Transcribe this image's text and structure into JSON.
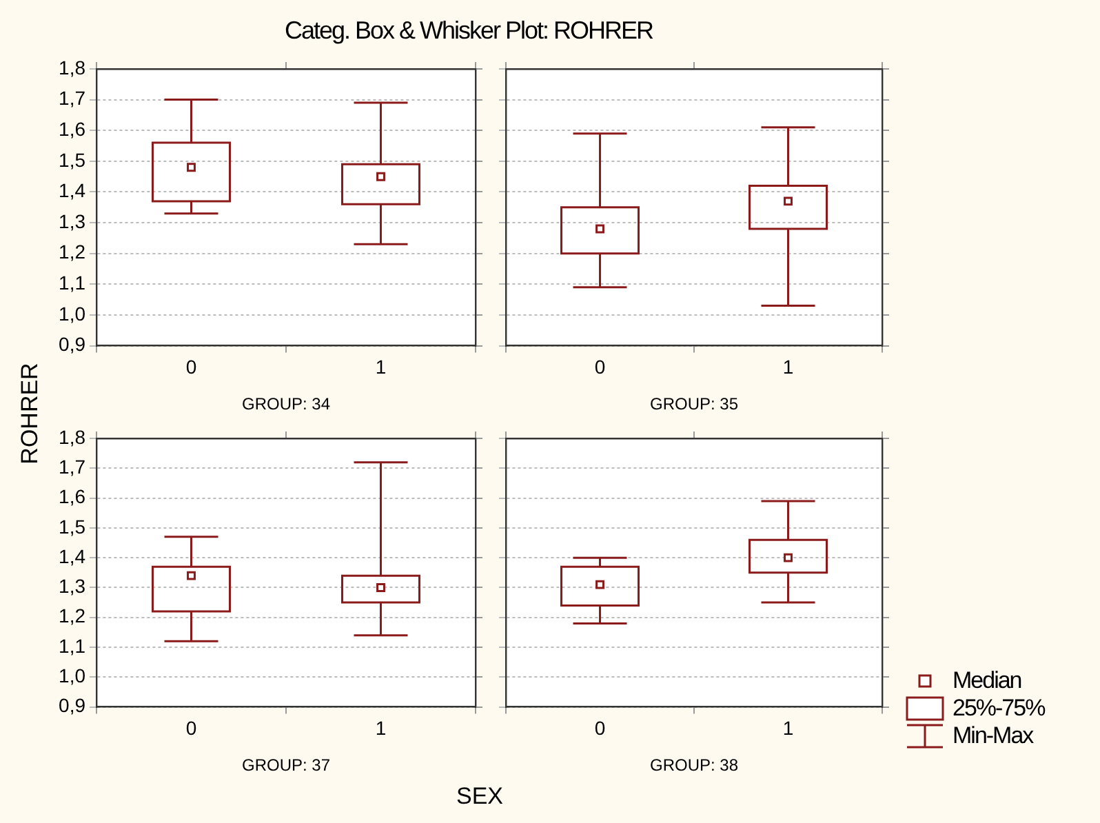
{
  "chart_data": [
    {
      "type": "box",
      "title": "Categ. Box & Whisker Plot:  ROHRER",
      "ylabel": "ROHRER",
      "categories": [
        "0",
        "1"
      ],
      "xlabel": "GROUP: 34",
      "ylim": [
        0.9,
        1.8
      ],
      "yticks": [
        {
          "value": 0.9,
          "label": "0,9"
        },
        {
          "value": 1.0,
          "label": "1,0"
        },
        {
          "value": 1.1,
          "label": "1,1"
        },
        {
          "value": 1.2,
          "label": "1,2"
        },
        {
          "value": 1.3,
          "label": "1,3"
        },
        {
          "value": 1.4,
          "label": "1,4"
        },
        {
          "value": 1.5,
          "label": "1,5"
        },
        {
          "value": 1.6,
          "label": "1,6"
        },
        {
          "value": 1.7,
          "label": "1,7"
        },
        {
          "value": 1.8,
          "label": "1,8"
        }
      ],
      "grid": "y",
      "series": [
        {
          "color": "#8b1a1a",
          "boxes": [
            {
              "low": 1.33,
              "q1": 1.37,
              "median": 1.48,
              "q3": 1.56,
              "high": 1.7
            },
            {
              "low": 1.23,
              "q1": 1.36,
              "median": 1.45,
              "q3": 1.49,
              "high": 1.69
            }
          ]
        }
      ]
    },
    {
      "type": "box",
      "categories": [
        "0",
        "1"
      ],
      "xlabel": "GROUP: 35",
      "ylim": [
        0.9,
        1.8
      ],
      "yticks": [
        {
          "value": 0.9,
          "label": null
        },
        {
          "value": 1.0,
          "label": null
        },
        {
          "value": 1.1,
          "label": null
        },
        {
          "value": 1.2,
          "label": null
        },
        {
          "value": 1.3,
          "label": null
        },
        {
          "value": 1.4,
          "label": null
        },
        {
          "value": 1.5,
          "label": null
        },
        {
          "value": 1.6,
          "label": null
        },
        {
          "value": 1.7,
          "label": null
        },
        {
          "value": 1.8,
          "label": null
        }
      ],
      "grid": "y",
      "tick_labels": "x",
      "series": [
        {
          "color": "#8b1a1a",
          "boxes": [
            {
              "low": 1.09,
              "q1": 1.2,
              "median": 1.28,
              "q3": 1.35,
              "high": 1.59
            },
            {
              "low": 1.03,
              "q1": 1.28,
              "median": 1.37,
              "q3": 1.42,
              "high": 1.61
            }
          ]
        }
      ]
    },
    {
      "type": "box",
      "categories": [
        "0",
        "1"
      ],
      "xlabel": "GROUP: 37",
      "ylim": [
        0.9,
        1.8
      ],
      "yticks": [
        {
          "value": 0.9,
          "label": "0,9"
        },
        {
          "value": 1.0,
          "label": "1,0"
        },
        {
          "value": 1.1,
          "label": "1,1"
        },
        {
          "value": 1.2,
          "label": "1,2"
        },
        {
          "value": 1.3,
          "label": "1,3"
        },
        {
          "value": 1.4,
          "label": "1,4"
        },
        {
          "value": 1.5,
          "label": "1,5"
        },
        {
          "value": 1.6,
          "label": "1,6"
        },
        {
          "value": 1.7,
          "label": "1,7"
        },
        {
          "value": 1.8,
          "label": "1,8"
        }
      ],
      "grid": "y",
      "annotations": [
        "SEX"
      ],
      "series": [
        {
          "color": "#8b1a1a",
          "boxes": [
            {
              "low": 1.12,
              "q1": 1.22,
              "median": 1.34,
              "q3": 1.37,
              "high": 1.47
            },
            {
              "low": 1.14,
              "q1": 1.25,
              "median": 1.3,
              "q3": 1.34,
              "high": 1.72
            }
          ]
        }
      ]
    },
    {
      "type": "box",
      "categories": [
        "0",
        "1"
      ],
      "xlabel": "GROUP: 38",
      "ylim": [
        0.9,
        1.8
      ],
      "yticks": [
        {
          "value": 0.9,
          "label": null
        },
        {
          "value": 1.0,
          "label": null
        },
        {
          "value": 1.1,
          "label": null
        },
        {
          "value": 1.2,
          "label": null
        },
        {
          "value": 1.3,
          "label": null
        },
        {
          "value": 1.4,
          "label": null
        },
        {
          "value": 1.5,
          "label": null
        },
        {
          "value": 1.6,
          "label": null
        },
        {
          "value": 1.7,
          "label": null
        },
        {
          "value": 1.8,
          "label": null
        }
      ],
      "grid": "y",
      "tick_labels": "x",
      "annotations": [
        "Median",
        "25%-75%",
        "Min-Max"
      ],
      "series": [
        {
          "color": "#8b1a1a",
          "boxes": [
            {
              "low": 1.18,
              "q1": 1.24,
              "median": 1.31,
              "q3": 1.37,
              "high": 1.4
            },
            {
              "low": 1.25,
              "q1": 1.35,
              "median": 1.4,
              "q3": 1.46,
              "high": 1.59
            }
          ]
        }
      ]
    }
  ]
}
